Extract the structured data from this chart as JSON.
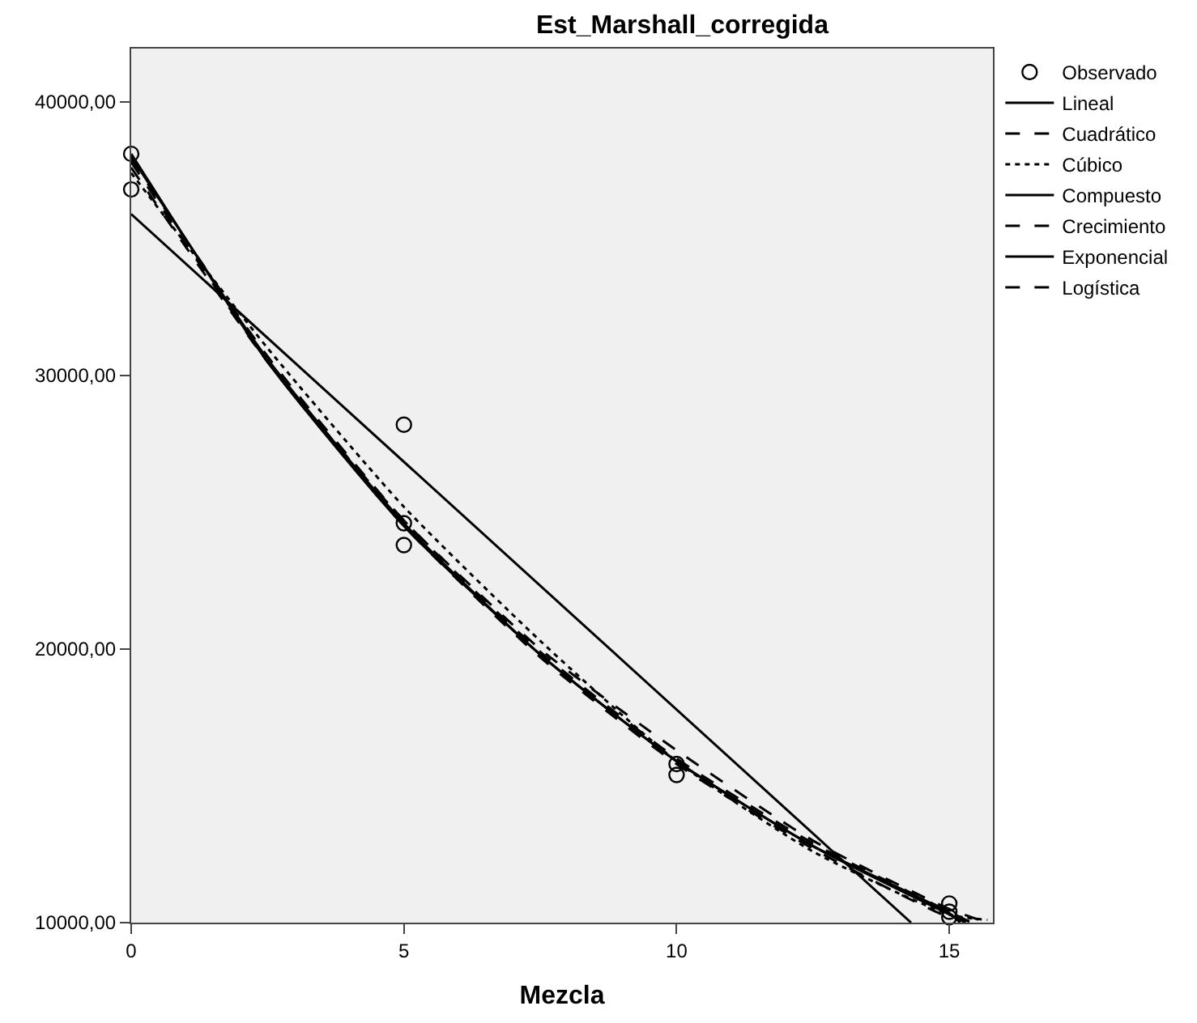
{
  "chart_data": {
    "type": "scatter",
    "title": "Est_Marshall_corregida",
    "xlabel": "Mezcla",
    "xlim": [
      0,
      15.8
    ],
    "xticks": [
      0,
      5,
      10,
      15
    ],
    "ylim": [
      10000,
      41950
    ],
    "yticks": [
      {
        "value": 10000,
        "label": "10000,00"
      },
      {
        "value": 20000,
        "label": "20000,00"
      },
      {
        "value": 30000,
        "label": "30000,00"
      },
      {
        "value": 40000,
        "label": "40000,00"
      }
    ],
    "grid": false,
    "legend": "top right",
    "series": [
      {
        "name": "Observado",
        "marker": "circle",
        "color": "#000000",
        "x": [
          0,
          0,
          5,
          5,
          5,
          10,
          10,
          15,
          15,
          15
        ],
        "values": [
          38100,
          36800,
          28200,
          24600,
          23800,
          15800,
          15400,
          10700,
          10400,
          10200
        ]
      },
      {
        "name": "Lineal",
        "type": "line",
        "line_style": "solid",
        "color": "#000000",
        "x": [
          0,
          14.3
        ],
        "values": [
          35900,
          10000
        ]
      },
      {
        "name": "Cuadrático",
        "type": "line",
        "line_style": "dashed",
        "color": "#000000",
        "x": [
          0,
          2.5,
          5,
          7.5,
          10,
          12.5,
          15,
          15.7
        ],
        "values": [
          37600,
          30500,
          24700,
          20000,
          16300,
          13000,
          10500,
          10000
        ]
      },
      {
        "name": "Cúbico",
        "type": "line",
        "line_style": "dotted",
        "color": "#000000",
        "x": [
          0,
          2.5,
          5,
          7.5,
          10,
          12.5,
          15,
          15.7
        ],
        "values": [
          37400,
          31000,
          25200,
          20300,
          15900,
          12600,
          10300,
          10100
        ]
      },
      {
        "name": "Compuesto",
        "type": "line",
        "line_style": "solid",
        "color": "#000000",
        "x": [
          0,
          2.5,
          5,
          7.5,
          10,
          12.5,
          15,
          15.3
        ],
        "values": [
          38000,
          30600,
          24600,
          19800,
          15900,
          12800,
          10300,
          10000
        ]
      },
      {
        "name": "Crecimiento",
        "type": "line",
        "line_style": "dashed",
        "color": "#000000",
        "x": [
          0,
          2.5,
          5,
          7.5,
          10,
          12.5,
          15,
          15.4
        ],
        "values": [
          37900,
          30700,
          24700,
          19900,
          16000,
          12900,
          10400,
          10000
        ]
      },
      {
        "name": "Exponencial",
        "type": "line",
        "line_style": "solid",
        "color": "#000000",
        "x": [
          0,
          2.5,
          5,
          7.5,
          10,
          12.5,
          15,
          15.2
        ],
        "values": [
          38100,
          30500,
          24500,
          19800,
          15900,
          12800,
          10350,
          10000
        ]
      },
      {
        "name": "Logística",
        "type": "line",
        "line_style": "dashed",
        "color": "#000000",
        "x": [
          0,
          2.5,
          5,
          7.5,
          10,
          12.5,
          15,
          15.6
        ],
        "values": [
          37800,
          30500,
          24500,
          19700,
          15800,
          12700,
          10200,
          10000
        ]
      }
    ]
  }
}
